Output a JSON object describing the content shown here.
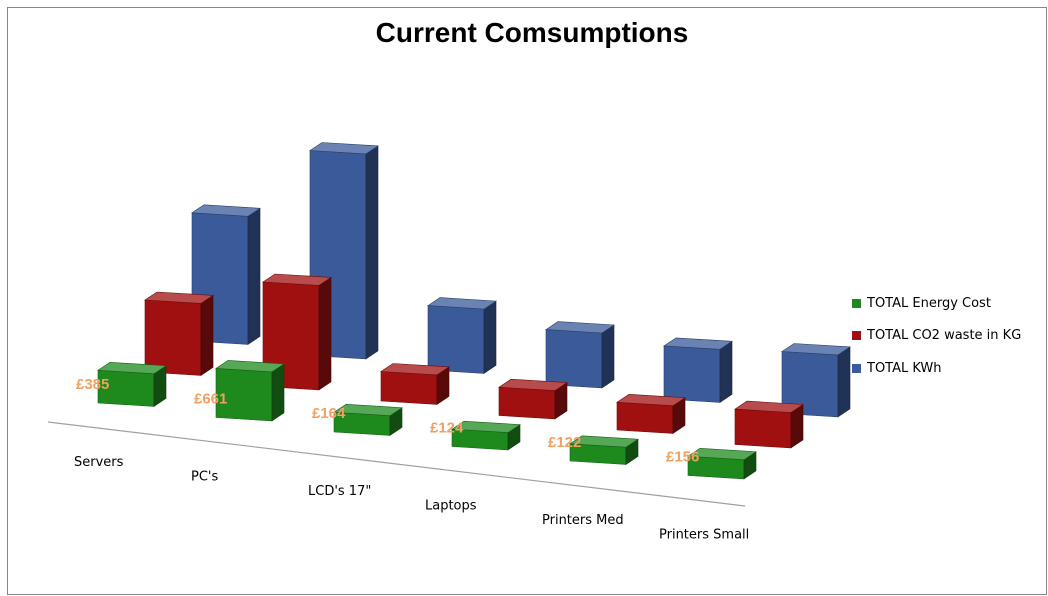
{
  "chart_data": {
    "type": "bar",
    "title": "Current Comsumptions",
    "categories": [
      "Servers",
      "PC's",
      "LCD's 17\"",
      "Laptops",
      "Printers Med",
      "Printers Small"
    ],
    "series": [
      {
        "name": "TOTAL Energy Cost",
        "values": [
          385,
          661,
          164,
          124,
          122,
          156
        ],
        "labels": [
          "£385",
          "£661",
          "£164",
          "£124",
          "£122",
          "£156"
        ],
        "color": "#1e8a1e"
      },
      {
        "name": "TOTAL CO2 waste in KG",
        "values": [
          1050,
          1600,
          330,
          310,
          300,
          430
        ],
        "color": "#a01010"
      },
      {
        "name": "TOTAL KWh",
        "values": [
          2000,
          3300,
          920,
          760,
          730,
          880
        ],
        "color": "#3a5a9a"
      }
    ],
    "legend_position": "right",
    "grid": false,
    "projection": "3d"
  }
}
